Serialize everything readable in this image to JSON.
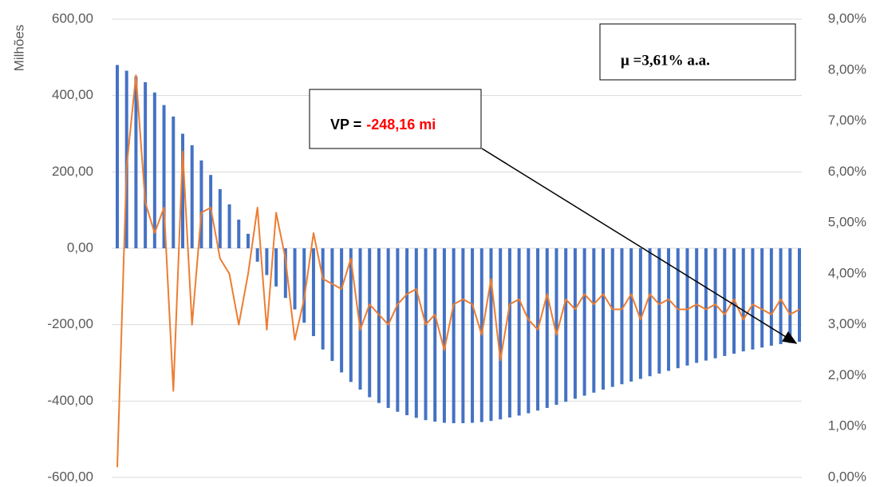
{
  "chart_data": {
    "type": "bar-line",
    "y_label": "Milhões",
    "annotations": {
      "mu": "μ =3,61% a.a.",
      "vp_label": "VP =",
      "vp_value": "-248,16 mi"
    },
    "categories": [
      null,
      null,
      null,
      null,
      null,
      null,
      null,
      null,
      null,
      null,
      null,
      null,
      null,
      null,
      null,
      null,
      null,
      null,
      null,
      null,
      null,
      null,
      null,
      null,
      null,
      null,
      null,
      null,
      null,
      null,
      null,
      null,
      null,
      null,
      null,
      null,
      null,
      null,
      null,
      null,
      null,
      null,
      null,
      null,
      null,
      null,
      null,
      null,
      null,
      null,
      null,
      null,
      null,
      null,
      null,
      null,
      null,
      null,
      null,
      null,
      null,
      null,
      null,
      null,
      null,
      null,
      null,
      null,
      null,
      null,
      null,
      null,
      null,
      null
    ],
    "series": [
      {
        "type": "bar",
        "color": "#4472c4",
        "values": [
          480,
          465,
          450,
          435,
          408,
          375,
          345,
          300,
          270,
          230,
          192,
          155,
          115,
          75,
          38,
          -35,
          -70,
          -100,
          -130,
          -160,
          -195,
          -230,
          -265,
          -295,
          -325,
          -350,
          -370,
          -390,
          -405,
          -418,
          -428,
          -437,
          -444,
          -450,
          -454,
          -457,
          -458,
          -458,
          -457,
          -455,
          -452,
          -448,
          -443,
          -438,
          -432,
          -425,
          -418,
          -410,
          -402,
          -394,
          -386,
          -378,
          -370,
          -363,
          -356,
          -349,
          -342,
          -335,
          -328,
          -321,
          -314,
          -307,
          -300,
          -294,
          -288,
          -282,
          -276,
          -270,
          -265,
          -260,
          -255,
          -251,
          -248,
          -245
        ]
      },
      {
        "type": "line",
        "axis": "y2",
        "color": "#ed7d31",
        "values": [
          0.2,
          6.1,
          7.9,
          5.4,
          4.8,
          5.3,
          1.7,
          6.4,
          3.0,
          5.2,
          5.3,
          4.3,
          4.0,
          3.0,
          4.0,
          5.3,
          2.9,
          5.2,
          4.3,
          2.7,
          3.5,
          4.8,
          3.9,
          3.8,
          3.7,
          4.3,
          2.9,
          3.4,
          3.2,
          3.0,
          3.4,
          3.6,
          3.7,
          3.0,
          3.2,
          2.5,
          3.4,
          3.5,
          3.4,
          2.8,
          3.9,
          2.3,
          3.4,
          3.5,
          3.1,
          2.9,
          3.6,
          2.8,
          3.5,
          3.3,
          3.6,
          3.4,
          3.6,
          3.3,
          3.3,
          3.6,
          3.1,
          3.6,
          3.4,
          3.5,
          3.3,
          3.3,
          3.4,
          3.3,
          3.4,
          3.2,
          3.5,
          3.1,
          3.4,
          3.3,
          3.2,
          3.5,
          3.2,
          3.3
        ]
      }
    ],
    "ylim": [
      -600,
      600
    ],
    "yticks": [
      {
        "value": -600,
        "label": "-600,00"
      },
      {
        "value": -400,
        "label": "-400,00"
      },
      {
        "value": -200,
        "label": "-200,00"
      },
      {
        "value": 0,
        "label": "0,00"
      },
      {
        "value": 200,
        "label": "200,00"
      },
      {
        "value": 400,
        "label": "400,00"
      },
      {
        "value": 600,
        "label": "600,00"
      }
    ],
    "y2lim": [
      0,
      9
    ],
    "y2ticks": [
      {
        "value": 0,
        "label": "0,00%"
      },
      {
        "value": 1,
        "label": "1,00%"
      },
      {
        "value": 2,
        "label": "2,00%"
      },
      {
        "value": 3,
        "label": "3,00%"
      },
      {
        "value": 4,
        "label": "4,00%"
      },
      {
        "value": 5,
        "label": "5,00%"
      },
      {
        "value": 6,
        "label": "6,00%"
      },
      {
        "value": 7,
        "label": "7,00%"
      },
      {
        "value": 8,
        "label": "8,00%"
      },
      {
        "value": 9,
        "label": "9,00%"
      }
    ],
    "grid": true
  }
}
